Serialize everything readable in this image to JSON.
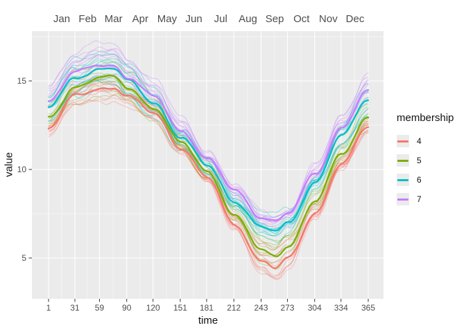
{
  "figure": {
    "background": "#FFFFFF",
    "panel_background": "#EBEBEB",
    "grid_color": "#FFFFFF",
    "tick_color": "#333333",
    "axis_text_color": "#4D4D4D",
    "title_text_color": "#111111",
    "legend_key_background": "#EBEBEB"
  },
  "chart_data": {
    "type": "line",
    "title": "",
    "xlabel": "time",
    "ylabel": "value",
    "legend_title": "membership",
    "legend_position": "right",
    "grid": true,
    "x_ticks": [
      1,
      31,
      59,
      90,
      120,
      151,
      181,
      212,
      243,
      273,
      304,
      334,
      365
    ],
    "top_axis_months": [
      "Jan",
      "Feb",
      "Mar",
      "Apr",
      "May",
      "Jun",
      "Jul",
      "Aug",
      "Sep",
      "Oct",
      "Nov",
      "Dec"
    ],
    "month_start_days": [
      1,
      32,
      60,
      91,
      121,
      152,
      182,
      213,
      244,
      274,
      305,
      335,
      366
    ],
    "y_ticks": [
      5,
      10,
      15
    ],
    "y_minor_ticks": [
      7.5,
      12.5,
      17.5
    ],
    "x_range_days": [
      1,
      365
    ],
    "y_range_approx": [
      2.7,
      17.8
    ],
    "thin_line_alpha": 0.35,
    "control_days": [
      1,
      32,
      60,
      75,
      91,
      121,
      152,
      182,
      213,
      244,
      259,
      274,
      305,
      335,
      365
    ],
    "series": [
      {
        "name": "4",
        "color": "#F8766D",
        "member_lines": 11,
        "mean_values_at_control_days": [
          12.3,
          14.2,
          14.6,
          14.6,
          14.1,
          13.2,
          11.2,
          9.5,
          6.9,
          4.8,
          4.4,
          5.0,
          7.6,
          10.3,
          12.4
        ]
      },
      {
        "name": "5",
        "color": "#7CAE00",
        "member_lines": 8,
        "mean_values_at_control_days": [
          12.9,
          14.7,
          15.2,
          15.2,
          14.6,
          13.5,
          11.5,
          9.9,
          7.4,
          5.4,
          5.1,
          5.7,
          8.2,
          10.9,
          13.0
        ]
      },
      {
        "name": "6",
        "color": "#00BFC4",
        "member_lines": 12,
        "mean_values_at_control_days": [
          13.5,
          15.2,
          15.7,
          15.7,
          15.0,
          13.8,
          11.8,
          10.2,
          8.2,
          6.7,
          6.5,
          7.0,
          9.3,
          11.9,
          14.0
        ]
      },
      {
        "name": "7",
        "color": "#C77CFF",
        "member_lines": 9,
        "mean_values_at_control_days": [
          13.9,
          15.5,
          15.9,
          15.9,
          15.2,
          14.1,
          12.2,
          10.6,
          8.8,
          7.3,
          7.1,
          7.5,
          9.8,
          12.4,
          14.4
        ]
      }
    ]
  }
}
